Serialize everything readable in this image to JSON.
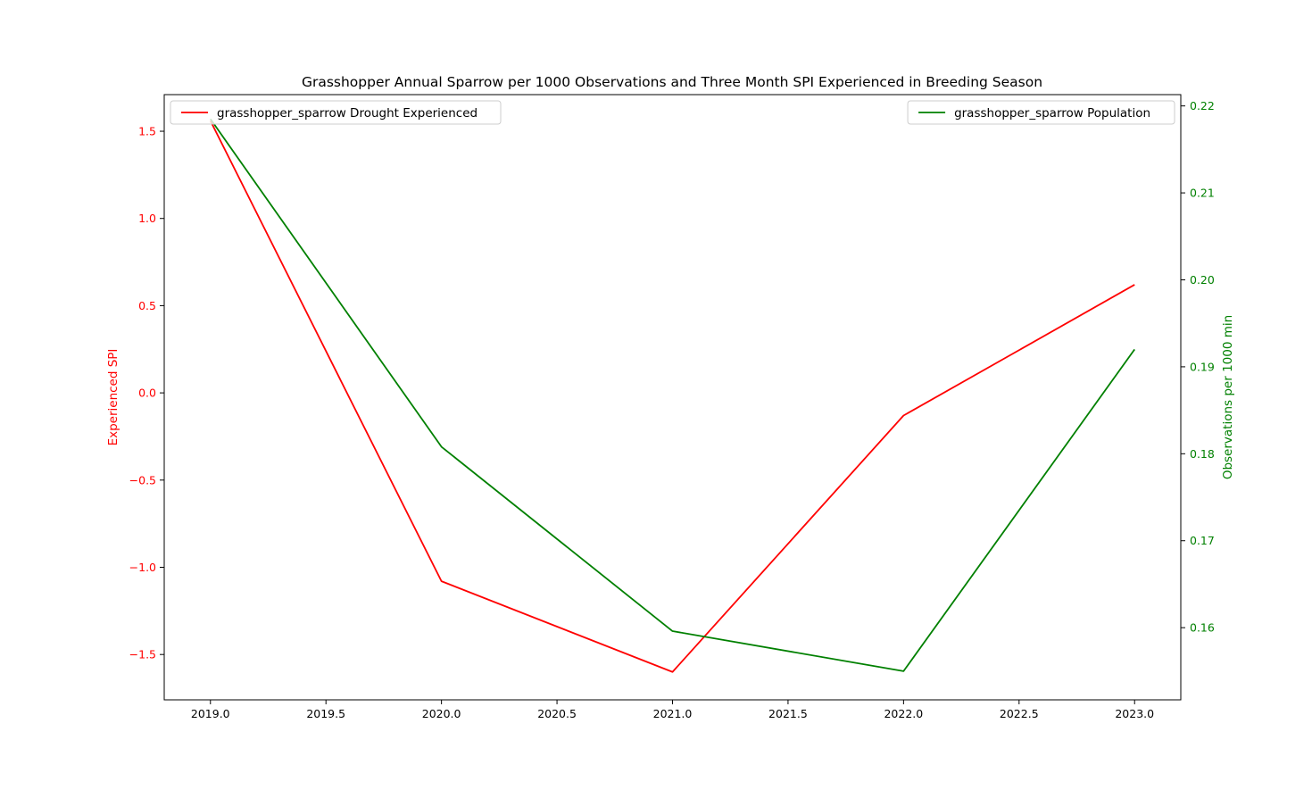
{
  "chart_data": {
    "type": "line",
    "title": "Grasshopper Annual Sparrow per 1000 Observations and Three Month SPI Experienced in Breeding Season",
    "x": [
      2019.0,
      2020.0,
      2021.0,
      2022.0,
      2023.0
    ],
    "xlabel": "",
    "xlim": [
      2018.8,
      2023.2
    ],
    "xticks": [
      2019.0,
      2019.5,
      2020.0,
      2020.5,
      2021.0,
      2021.5,
      2022.0,
      2022.5,
      2023.0
    ],
    "xtick_labels": [
      "2019.0",
      "2019.5",
      "2020.0",
      "2020.5",
      "2021.0",
      "2021.5",
      "2022.0",
      "2022.5",
      "2023.0"
    ],
    "y_left": {
      "label": "Experienced SPI",
      "color": "#ff0000",
      "lim": [
        -1.76,
        1.71
      ],
      "ticks": [
        -1.5,
        -1.0,
        -0.5,
        0.0,
        0.5,
        1.0,
        1.5
      ],
      "tick_labels": [
        "−1.5",
        "−1.0",
        "−0.5",
        "0.0",
        "0.5",
        "1.0",
        "1.5"
      ]
    },
    "y_right": {
      "label": "Observations per 1000 min",
      "color": "#008000",
      "lim": [
        0.1517,
        0.2213
      ],
      "ticks": [
        0.16,
        0.17,
        0.18,
        0.19,
        0.2,
        0.21,
        0.22
      ],
      "tick_labels": [
        "0.16",
        "0.17",
        "0.18",
        "0.19",
        "0.20",
        "0.21",
        "0.22"
      ]
    },
    "series": [
      {
        "name": "grasshopper_sparrow Drought Experienced",
        "axis": "left",
        "color": "#ff0000",
        "values": [
          1.56,
          -1.08,
          -1.6,
          -0.13,
          0.62
        ]
      },
      {
        "name": "grasshopper_sparrow Population",
        "axis": "right",
        "color": "#008000",
        "values": [
          0.2185,
          0.1808,
          0.1596,
          0.155,
          0.192
        ]
      }
    ],
    "legends": [
      {
        "placement": "upper-left",
        "series": 0
      },
      {
        "placement": "upper-right",
        "series": 1
      }
    ],
    "grid": false
  }
}
